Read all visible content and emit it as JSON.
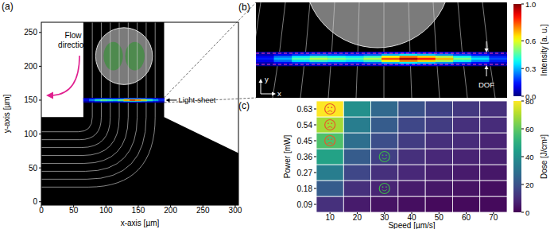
{
  "chart_data": [
    {
      "type": "image",
      "panel_label": "(a)",
      "x_label": "x-axis [µm]",
      "y_label": "y-axis [µm]",
      "xlim": [
        0,
        305
      ],
      "ylim": [
        -5,
        265
      ],
      "xticks": [
        0,
        50,
        100,
        150,
        200,
        250,
        300
      ],
      "yticks": [
        0,
        50,
        100,
        150,
        200,
        250
      ],
      "flow_label": "Flow direction",
      "light_sheet_label": "Light-sheet",
      "channel": [
        [
          0,
          -5
        ],
        [
          305,
          -5
        ],
        [
          305,
          72
        ],
        [
          190,
          125
        ],
        [
          190,
          265
        ],
        [
          65,
          265
        ],
        [
          65,
          125
        ],
        [
          0,
          125
        ]
      ],
      "cell": {
        "x": 128,
        "y": 215,
        "radius": 44
      },
      "light_sheet": {
        "y": 150,
        "x0": 65,
        "x1": 190
      }
    },
    {
      "type": "image",
      "panel_label": "(b)",
      "dof_label": "DOF",
      "x_arrow_label": "x",
      "y_arrow_label": "y",
      "intensity_profile": [
        0.15,
        0.3,
        0.45,
        0.55,
        0.5,
        0.45,
        0.55,
        0.8,
        0.95,
        0.85,
        0.7,
        0.5,
        0.35,
        0.2
      ],
      "colorbar": {
        "label": "Intensity [a. u.]",
        "lim": [
          0,
          1
        ],
        "ticks": [
          {
            "value": 0,
            "label": "0.0"
          },
          0.3,
          0.6,
          {
            "value": 1,
            "label": "1.0"
          }
        ]
      }
    },
    {
      "type": "heatmap",
      "panel_label": "(c)",
      "x_label": "Speed [µm/s]",
      "y_label": "Power [mW]",
      "grid": true,
      "x": [
        10,
        20,
        30,
        40,
        50,
        60,
        70
      ],
      "y": [
        0.09,
        0.18,
        0.27,
        0.36,
        0.45,
        0.54,
        0.63
      ],
      "values": [
        [
          11,
          6,
          4,
          3,
          2,
          2,
          2
        ],
        [
          23,
          11,
          8,
          6,
          5,
          4,
          3
        ],
        [
          34,
          17,
          11,
          9,
          7,
          6,
          5
        ],
        [
          46,
          23,
          15,
          11,
          9,
          8,
          7
        ],
        [
          57,
          29,
          19,
          14,
          11,
          10,
          8
        ],
        [
          69,
          34,
          23,
          17,
          14,
          11,
          10
        ],
        [
          80,
          40,
          27,
          20,
          16,
          13,
          11
        ]
      ],
      "colorbar": {
        "label": "Dose [J/cm²]",
        "lim": [
          0,
          80
        ],
        "ticks": [
          0,
          20,
          40,
          60,
          80
        ]
      },
      "faces": [
        {
          "x": 10,
          "y": 0.63,
          "marker": "sad",
          "color": "#e8582a"
        },
        {
          "x": 10,
          "y": 0.54,
          "marker": "sad",
          "color": "#e8582a"
        },
        {
          "x": 10,
          "y": 0.45,
          "marker": "sad",
          "color": "#e8582a"
        },
        {
          "x": 30,
          "y": 0.36,
          "marker": "happy",
          "color": "#3cb44b"
        },
        {
          "x": 30,
          "y": 0.18,
          "marker": "happy",
          "color": "#3cb44b"
        }
      ]
    }
  ]
}
